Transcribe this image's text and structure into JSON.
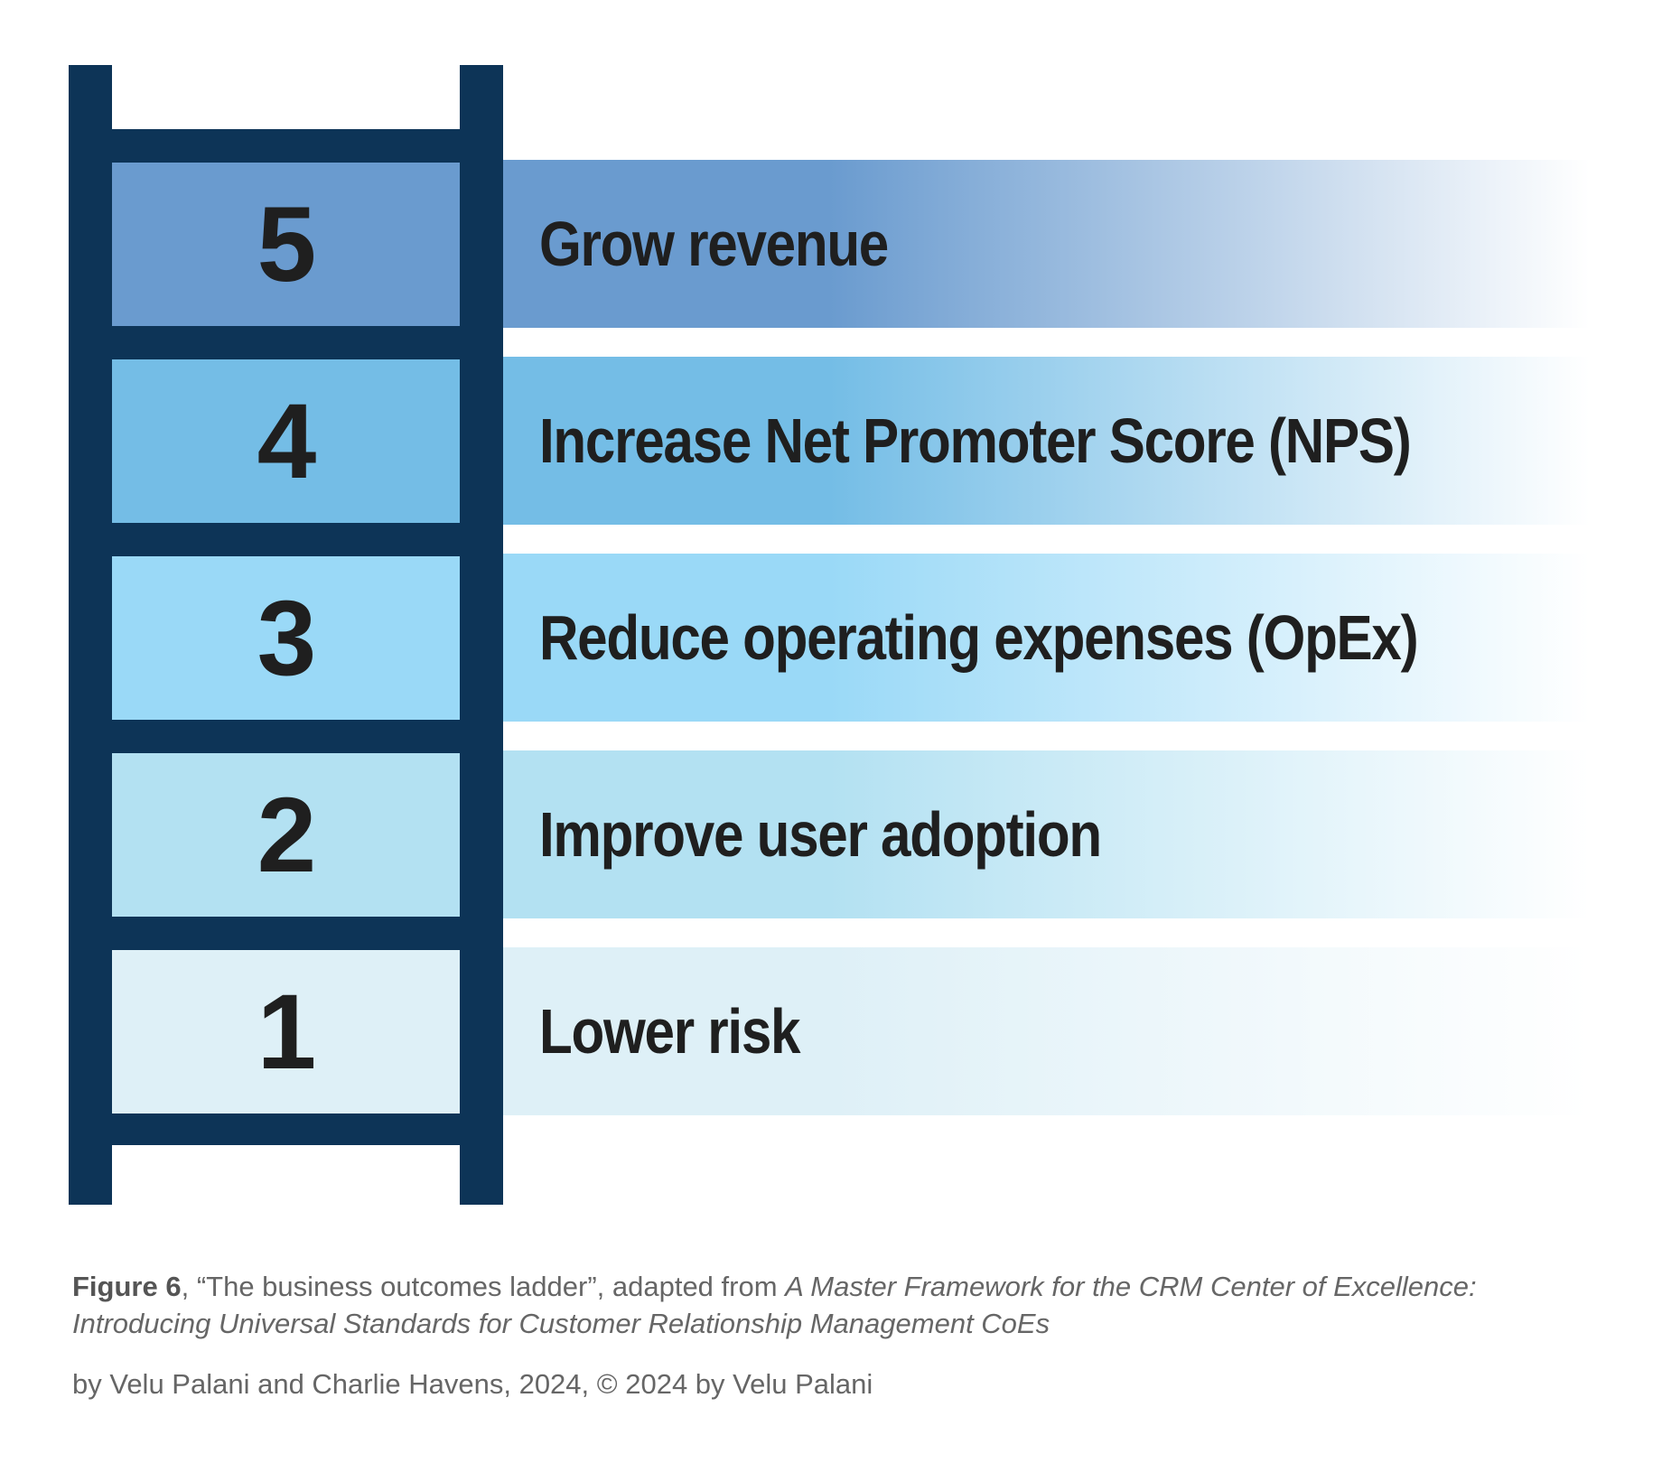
{
  "ladder": {
    "rail_color": "#0d3457",
    "steps": [
      {
        "number": "5",
        "label": "Grow revenue",
        "color": "#6a9bcf"
      },
      {
        "number": "4",
        "label": "Increase Net Promoter Score (NPS)",
        "color": "#74bde6"
      },
      {
        "number": "3",
        "label": "Reduce operating expenses (OpEx)",
        "color": "#9ad9f7"
      },
      {
        "number": "2",
        "label": "Improve user adoption",
        "color": "#b3e1f2"
      },
      {
        "number": "1",
        "label": "Lower risk",
        "color": "#def0f7"
      }
    ]
  },
  "caption": {
    "figure_label": "Figure 6",
    "title_part": ", “The business outcomes ladder”, adapted from ",
    "source_title": "A Master Framework for the CRM Center of Excellence: Introducing Universal Standards for Customer Relationship Management CoEs",
    "credit": "by Velu Palani and Charlie Havens, 2024, © 2024 by Velu Palani"
  }
}
